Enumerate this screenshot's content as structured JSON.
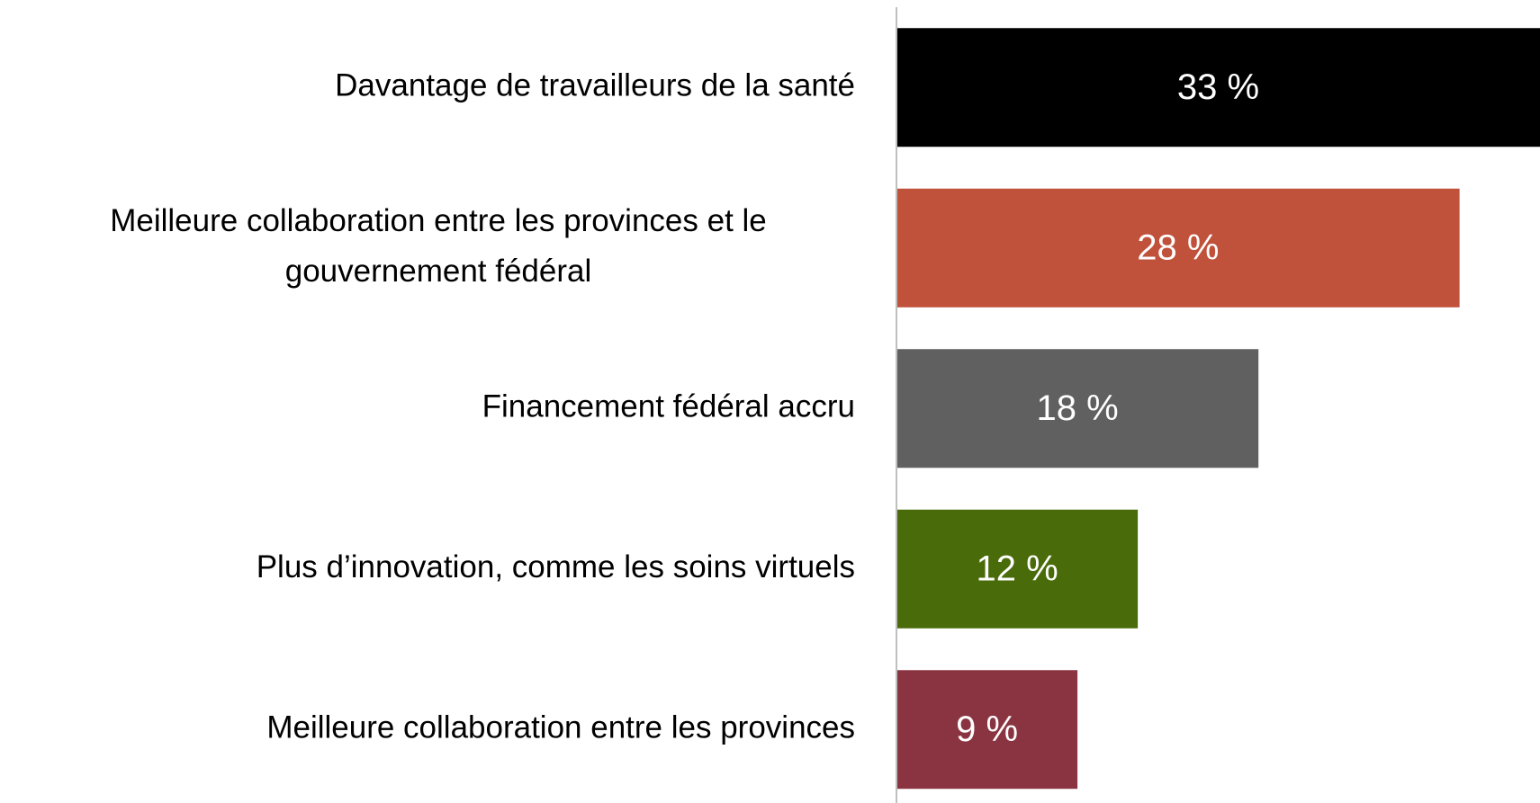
{
  "chart_data": {
    "type": "bar",
    "orientation": "horizontal",
    "categories": [
      "Davantage de travailleurs de la santé",
      [
        "Meilleure collaboration entre les provinces et le",
        "gouvernement fédéral"
      ],
      "Financement fédéral accru",
      "Plus d’innovation, comme les soins virtuels",
      "Meilleure collaboration entre les provinces"
    ],
    "values": [
      33,
      28,
      18,
      12,
      9
    ],
    "value_labels": [
      "33 %",
      "28 %",
      "18 %",
      "12 %",
      "9 %"
    ],
    "colors": [
      "#000000",
      "#c0513a",
      "#606060",
      "#4a6b09",
      "#8a3442"
    ],
    "xlim": [
      0,
      32
    ]
  }
}
